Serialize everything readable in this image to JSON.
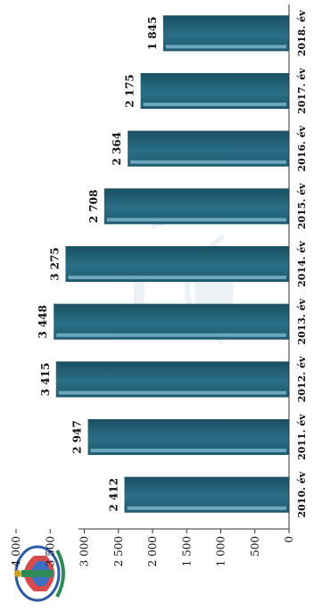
{
  "chart_data": {
    "type": "bar",
    "categories": [
      "2010. év",
      "2011. év",
      "2012. év",
      "2013. év",
      "2014. év",
      "2015. év",
      "2016. év",
      "2017. év",
      "2018. év"
    ],
    "values": [
      2412,
      2947,
      3415,
      3448,
      3275,
      2708,
      2364,
      2175,
      1845
    ],
    "data_labels": [
      "2 412",
      "2 947",
      "3 415",
      "3 448",
      "3 275",
      "2 708",
      "2 364",
      "2 175",
      "1 845"
    ],
    "y_ticks": [
      0,
      500,
      1000,
      1500,
      2000,
      2500,
      3000,
      3500,
      4000
    ],
    "y_tick_labels": [
      "0",
      "500",
      "1 000",
      "1 500",
      "2 000",
      "2 500",
      "3 000",
      "3 500",
      "4 000"
    ],
    "ylim": [
      0,
      4000
    ],
    "title": "",
    "xlabel": "",
    "ylabel": "",
    "grid": false,
    "bar_color": "#2a6f86",
    "bar_highlight_color": "#8ec6dc",
    "orientation": "rotated 90° counter-clockwise on the page",
    "logo": "police-crest-icon"
  }
}
